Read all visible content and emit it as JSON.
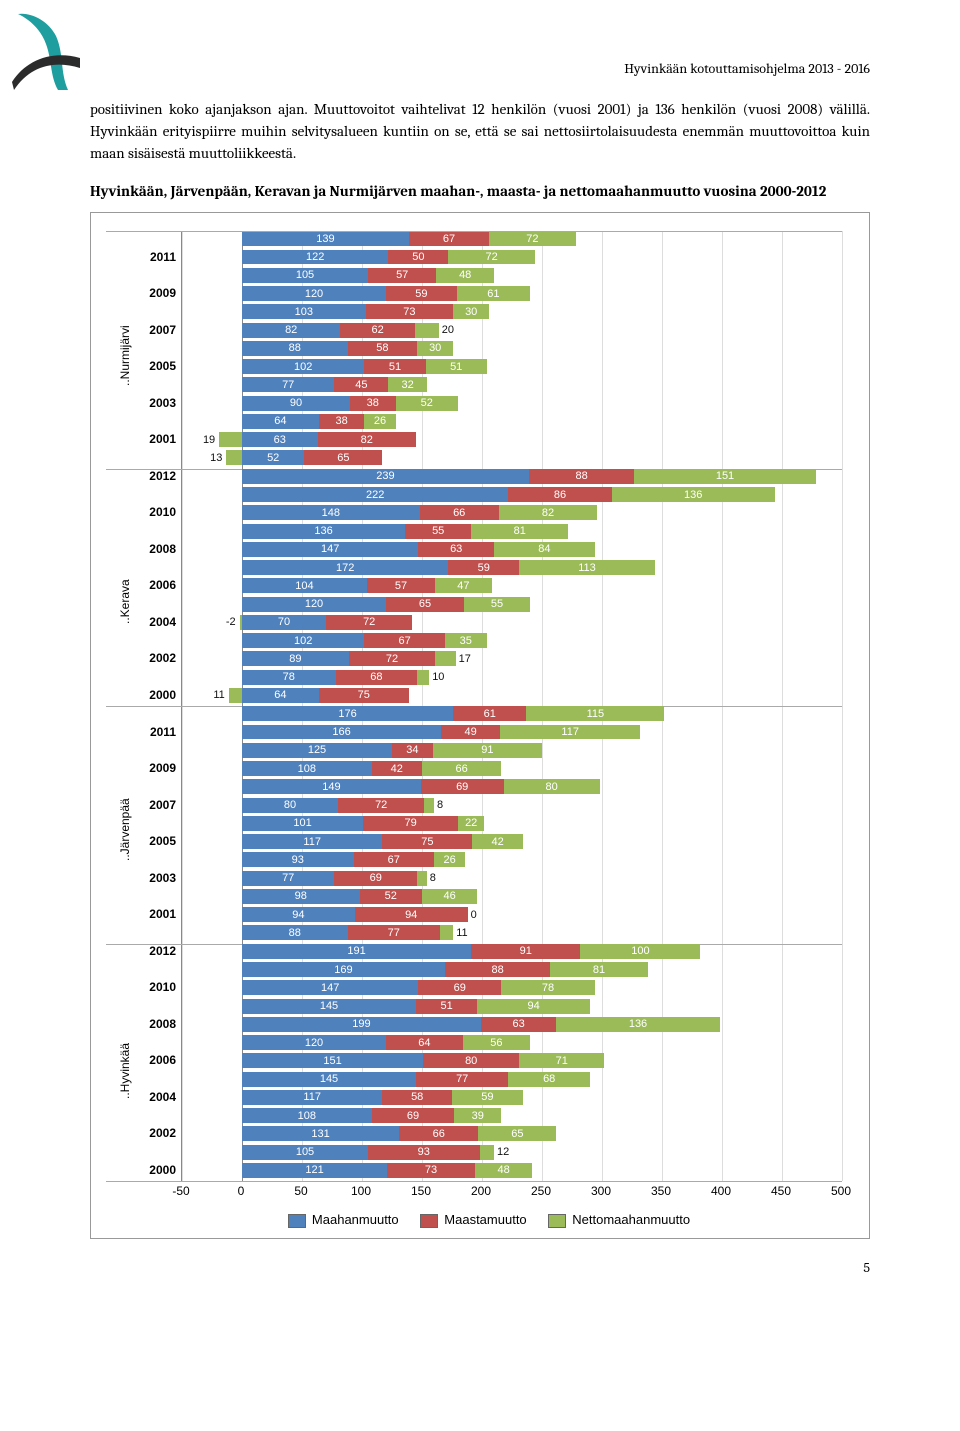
{
  "header": "Hyvinkään kotouttamisohjelma 2013 - 2016",
  "para": "positiivinen koko ajanjakson ajan. Muuttovoitot vaihtelivat 12 henkilön (vuosi 2001) ja 136 henkilön (vuosi 2008) välillä. Hyvinkään erityispiirre muihin selvitysalueen kuntiin on se, että se sai nettosiirtolaisuudesta enemmän muuttovoittoa kuin maan sisäisestä muuttoliikkeestä.",
  "subtitle": "Hyvinkään, Järvenpään, Keravan ja Nurmijärven maahan-, maasta- ja nettomaahanmuutto vuosina 2000-2012",
  "page_number": "5",
  "chart": {
    "xmin": -50,
    "xmax": 500,
    "xticks": [
      -50,
      0,
      50,
      100,
      150,
      200,
      250,
      300,
      350,
      400,
      450,
      500
    ],
    "colors": {
      "maahan": "#4f81bd",
      "maasta": "#c0504d",
      "netto": "#9bbb59",
      "grid": "#dddddd",
      "axis": "#888888"
    },
    "legend": {
      "maahan": "Maahanmuutto",
      "maasta": "Maastamuutto",
      "netto": "Nettomaahanmuutto"
    },
    "groups": [
      {
        "name": "..Nurmijärvi",
        "rows": [
          {
            "y": "",
            "m": 139,
            "s": 67,
            "n": 72
          },
          {
            "y": "2011",
            "m": 122,
            "s": 50,
            "n": 72
          },
          {
            "y": "",
            "m": 105,
            "s": 57,
            "n": 48
          },
          {
            "y": "2009",
            "m": 120,
            "s": 59,
            "n": 61
          },
          {
            "y": "",
            "m": 103,
            "s": 73,
            "n": 30
          },
          {
            "y": "2007",
            "m": 82,
            "s": 62,
            "n": 20
          },
          {
            "y": "",
            "m": 88,
            "s": 58,
            "n": 30
          },
          {
            "y": "2005",
            "m": 102,
            "s": 51,
            "n": 51
          },
          {
            "y": "",
            "m": 77,
            "s": 45,
            "n": 32
          },
          {
            "y": "2003",
            "m": 90,
            "s": 38,
            "n": 52
          },
          {
            "y": "",
            "m": 64,
            "s": 38,
            "n": 26
          },
          {
            "y": "2001",
            "m": 63,
            "s": 82,
            "n": -19,
            "nlabel": "19"
          },
          {
            "y": "",
            "m": 52,
            "s": 65,
            "n": -13,
            "nlabel": "13"
          }
        ]
      },
      {
        "name": "..Kerava",
        "rows": [
          {
            "y": "2012",
            "m": 239,
            "s": 88,
            "n": 151
          },
          {
            "y": "",
            "m": 222,
            "s": 86,
            "n": 136
          },
          {
            "y": "2010",
            "m": 148,
            "s": 66,
            "n": 82
          },
          {
            "y": "",
            "m": 136,
            "s": 55,
            "n": 81
          },
          {
            "y": "2008",
            "m": 147,
            "s": 63,
            "n": 84
          },
          {
            "y": "",
            "m": 172,
            "s": 59,
            "n": 113
          },
          {
            "y": "2006",
            "m": 104,
            "s": 57,
            "n": 47
          },
          {
            "y": "",
            "m": 120,
            "s": 65,
            "n": 55
          },
          {
            "y": "2004",
            "m": 70,
            "s": 72,
            "n": -2,
            "nlabel": "-2"
          },
          {
            "y": "",
            "m": 102,
            "s": 67,
            "n": 35
          },
          {
            "y": "2002",
            "m": 89,
            "s": 72,
            "n": 17
          },
          {
            "y": "",
            "m": 78,
            "s": 68,
            "n": 10
          },
          {
            "y": "2000",
            "m": 64,
            "s": 75,
            "n": -11,
            "nlabel": "11"
          }
        ]
      },
      {
        "name": "..Järvenpää",
        "rows": [
          {
            "y": "",
            "m": 176,
            "s": 61,
            "n": 115
          },
          {
            "y": "2011",
            "m": 166,
            "s": 49,
            "n": 117
          },
          {
            "y": "",
            "m": 125,
            "s": 34,
            "n": 91
          },
          {
            "y": "2009",
            "m": 108,
            "s": 42,
            "n": 66
          },
          {
            "y": "",
            "m": 149,
            "s": 69,
            "n": 80
          },
          {
            "y": "2007",
            "m": 80,
            "s": 72,
            "n": 8
          },
          {
            "y": "",
            "m": 101,
            "s": 79,
            "n": 22
          },
          {
            "y": "2005",
            "m": 117,
            "s": 75,
            "n": 42
          },
          {
            "y": "",
            "m": 93,
            "s": 67,
            "n": 26
          },
          {
            "y": "2003",
            "m": 77,
            "s": 69,
            "n": 8
          },
          {
            "y": "",
            "m": 98,
            "s": 52,
            "n": 46
          },
          {
            "y": "2001",
            "m": 94,
            "s": 94,
            "n": 0
          },
          {
            "y": "",
            "m": 88,
            "s": 77,
            "n": 11
          }
        ]
      },
      {
        "name": "..Hyvinkää",
        "rows": [
          {
            "y": "2012",
            "m": 191,
            "s": 91,
            "n": 100
          },
          {
            "y": "",
            "m": 169,
            "s": 88,
            "n": 81
          },
          {
            "y": "2010",
            "m": 147,
            "s": 69,
            "n": 78
          },
          {
            "y": "",
            "m": 145,
            "s": 51,
            "n": 94
          },
          {
            "y": "2008",
            "m": 199,
            "s": 63,
            "n": 136
          },
          {
            "y": "",
            "m": 120,
            "s": 64,
            "n": 56
          },
          {
            "y": "2006",
            "m": 151,
            "s": 80,
            "n": 71
          },
          {
            "y": "",
            "m": 145,
            "s": 77,
            "n": 68
          },
          {
            "y": "2004",
            "m": 117,
            "s": 58,
            "n": 59
          },
          {
            "y": "",
            "m": 108,
            "s": 69,
            "n": 39
          },
          {
            "y": "2002",
            "m": 131,
            "s": 66,
            "n": 65
          },
          {
            "y": "",
            "m": 105,
            "s": 93,
            "n": 12
          },
          {
            "y": "2000",
            "m": 121,
            "s": 73,
            "n": 48
          }
        ]
      }
    ]
  },
  "logo_colors": {
    "teal": "#1e9e9e",
    "dark": "#2b2b2b"
  }
}
